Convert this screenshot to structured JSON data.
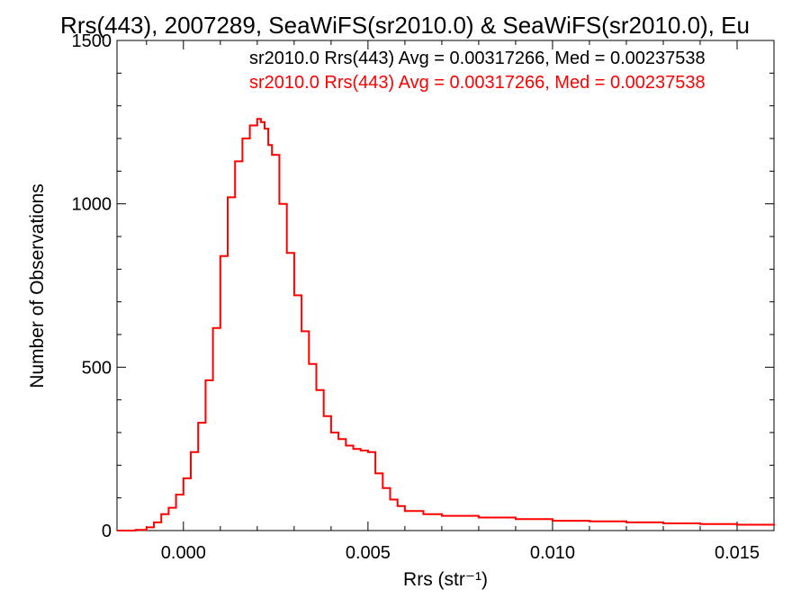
{
  "chart_data": {
    "type": "histogram",
    "title": "Rrs(443), 2007289, SeaWiFS(sr2010.0) & SeaWiFS(sr2010.0), Eu",
    "xlabel": "Rrs (str⁻¹)",
    "ylabel": "Number of Observations",
    "xlim": [
      -0.0018,
      0.016
    ],
    "ylim": [
      0,
      1500
    ],
    "x_ticks": [
      0.0,
      0.005,
      0.01,
      0.015
    ],
    "x_tick_labels": [
      "0.000",
      "0.005",
      "0.010",
      "0.015"
    ],
    "y_ticks": [
      0,
      500,
      1000,
      1500
    ],
    "y_tick_labels": [
      "0",
      "500",
      "1000",
      "1500"
    ],
    "grid": false,
    "legend": [
      {
        "text": "sr2010.0 Rrs(443) Avg = 0.00317266, Med = 0.00237538",
        "color": "#000000"
      },
      {
        "text": "sr2010.0 Rrs(443) Avg = 0.00317266, Med = 0.00237538",
        "color": "#ff0000"
      }
    ],
    "series": [
      {
        "color": "#ff0000",
        "x": [
          -0.0018,
          -0.0013,
          -0.001,
          -0.0008,
          -0.0006,
          -0.0004,
          -0.0002,
          0.0,
          0.0002,
          0.0004,
          0.0006,
          0.0008,
          0.001,
          0.0012,
          0.0014,
          0.0016,
          0.0018,
          0.002,
          0.0021,
          0.0022,
          0.0023,
          0.0024,
          0.0026,
          0.0028,
          0.003,
          0.0032,
          0.0034,
          0.0036,
          0.0038,
          0.004,
          0.0042,
          0.0044,
          0.0046,
          0.0048,
          0.005,
          0.0052,
          0.0054,
          0.0056,
          0.0058,
          0.006,
          0.0065,
          0.007,
          0.008,
          0.009,
          0.01,
          0.011,
          0.012,
          0.013,
          0.014,
          0.015,
          0.016
        ],
        "y": [
          0,
          2,
          10,
          25,
          50,
          70,
          110,
          160,
          240,
          330,
          460,
          620,
          840,
          1020,
          1130,
          1200,
          1240,
          1260,
          1250,
          1230,
          1180,
          1150,
          1000,
          850,
          720,
          610,
          510,
          430,
          350,
          300,
          280,
          260,
          250,
          245,
          240,
          175,
          130,
          95,
          75,
          60,
          50,
          45,
          40,
          35,
          30,
          28,
          25,
          22,
          20,
          18,
          15
        ]
      }
    ]
  }
}
